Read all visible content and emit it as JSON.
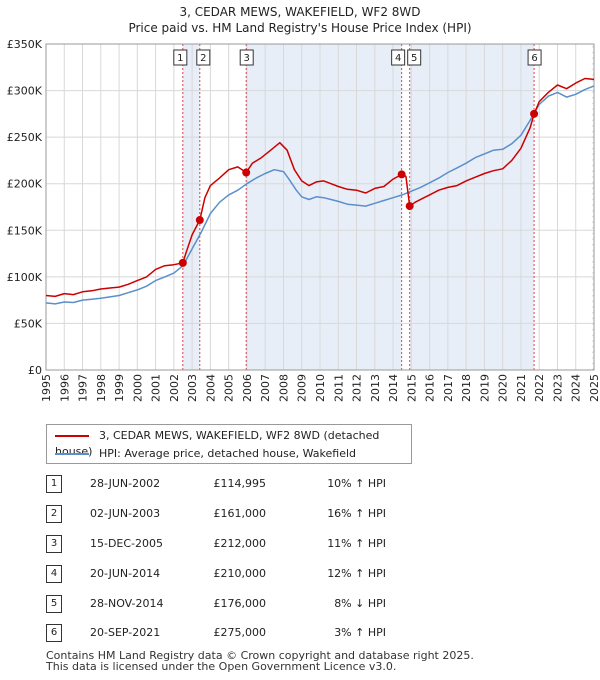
{
  "chart_data": {
    "type": "line",
    "title": "3, CEDAR MEWS, WAKEFIELD, WF2 8WD",
    "subtitle": "Price paid vs. HM Land Registry's House Price Index (HPI)",
    "x_ticks": [
      "1995",
      "1996",
      "1997",
      "1998",
      "1999",
      "2000",
      "2001",
      "2002",
      "2003",
      "2004",
      "2005",
      "2006",
      "2007",
      "2008",
      "2009",
      "2010",
      "2011",
      "2012",
      "2013",
      "2014",
      "2015",
      "2016",
      "2017",
      "2018",
      "2019",
      "2020",
      "2021",
      "2022",
      "2023",
      "2024",
      "2025"
    ],
    "y_ticks": [
      "£0",
      "£50K",
      "£100K",
      "£150K",
      "£200K",
      "£250K",
      "£300K",
      "£350K"
    ],
    "xlim": [
      1995,
      2025
    ],
    "ylim": [
      0,
      350000
    ],
    "colors": {
      "property": "#cc0000",
      "hpi": "#5b8fcc",
      "shade": "#e8eef8",
      "marker_line": "#dd4444"
    },
    "series": [
      {
        "name": "3, CEDAR MEWS, WAKEFIELD, WF2 8WD (detached house)",
        "x": [
          1995,
          1995.5,
          1996,
          1996.5,
          1997,
          1997.5,
          1998,
          1998.5,
          1999,
          1999.5,
          2000,
          2000.5,
          2001,
          2001.5,
          2002,
          2002.49,
          2002.7,
          2003,
          2003.42,
          2003.7,
          2004,
          2004.5,
          2005,
          2005.5,
          2005.96,
          2006.3,
          2006.8,
          2007.3,
          2007.8,
          2008.2,
          2008.6,
          2009,
          2009.4,
          2009.8,
          2010.2,
          2010.6,
          2011,
          2011.5,
          2012,
          2012.5,
          2013,
          2013.5,
          2014,
          2014.47,
          2014.7,
          2014.91,
          2015.2,
          2015.6,
          2016,
          2016.5,
          2017,
          2017.5,
          2018,
          2018.5,
          2019,
          2019.5,
          2020,
          2020.5,
          2021,
          2021.5,
          2021.72,
          2022,
          2022.5,
          2023,
          2023.5,
          2024,
          2024.5,
          2025
        ],
        "y": [
          80000,
          79000,
          82000,
          81000,
          84000,
          85000,
          87000,
          88000,
          89000,
          92000,
          96000,
          100000,
          108000,
          112000,
          113000,
          114995,
          128000,
          145000,
          161000,
          185000,
          198000,
          206000,
          215000,
          218000,
          212000,
          222000,
          228000,
          236000,
          244000,
          236000,
          215000,
          203000,
          198000,
          202000,
          203000,
          200000,
          197000,
          194000,
          193000,
          190000,
          195000,
          197000,
          205000,
          210000,
          208000,
          176000,
          180000,
          184000,
          188000,
          193000,
          196000,
          198000,
          203000,
          207000,
          211000,
          214000,
          216000,
          225000,
          238000,
          260000,
          275000,
          288000,
          298000,
          306000,
          302000,
          308000,
          313000,
          312000
        ]
      },
      {
        "name": "HPI: Average price, detached house, Wakefield",
        "x": [
          1995,
          1995.5,
          1996,
          1996.5,
          1997,
          1997.5,
          1998,
          1998.5,
          1999,
          1999.5,
          2000,
          2000.5,
          2001,
          2001.5,
          2002,
          2002.5,
          2003,
          2003.5,
          2004,
          2004.5,
          2005,
          2005.5,
          2006,
          2006.5,
          2007,
          2007.5,
          2008,
          2008.3,
          2008.7,
          2009,
          2009.4,
          2009.8,
          2010.2,
          2010.6,
          2011,
          2011.5,
          2012,
          2012.5,
          2013,
          2013.5,
          2014,
          2014.5,
          2015,
          2015.5,
          2016,
          2016.5,
          2017,
          2017.5,
          2018,
          2018.5,
          2019,
          2019.5,
          2020,
          2020.5,
          2021,
          2021.5,
          2022,
          2022.5,
          2023,
          2023.5,
          2024,
          2024.5,
          2025
        ],
        "y": [
          72000,
          71000,
          73000,
          72500,
          75000,
          76000,
          77000,
          78500,
          80000,
          83000,
          86000,
          90000,
          96000,
          100000,
          104000,
          112000,
          130000,
          148000,
          168000,
          180000,
          188000,
          193000,
          200000,
          206000,
          211000,
          215000,
          213000,
          205000,
          193000,
          186000,
          183000,
          186000,
          185000,
          183000,
          181000,
          178000,
          177000,
          176000,
          179000,
          182000,
          185000,
          188000,
          192000,
          196000,
          201000,
          206000,
          212000,
          217000,
          222000,
          228000,
          232000,
          236000,
          237000,
          243000,
          252000,
          268000,
          285000,
          294000,
          298000,
          293000,
          296000,
          301000,
          305000
        ]
      }
    ],
    "sales": [
      {
        "label": "1",
        "x": 2002.49,
        "y": 114995
      },
      {
        "label": "2",
        "x": 2003.42,
        "y": 161000
      },
      {
        "label": "3",
        "x": 2005.96,
        "y": 212000
      },
      {
        "label": "4",
        "x": 2014.47,
        "y": 210000
      },
      {
        "label": "5",
        "x": 2014.91,
        "y": 176000
      },
      {
        "label": "6",
        "x": 2021.72,
        "y": 275000
      }
    ],
    "shaded_spans": [
      [
        2002.49,
        2003.42
      ],
      [
        2005.96,
        2014.47
      ],
      [
        2014.91,
        2021.72
      ]
    ]
  },
  "legend": {
    "property_label": "3, CEDAR MEWS, WAKEFIELD, WF2 8WD (detached house)",
    "hpi_label": "HPI: Average price, detached house, Wakefield"
  },
  "transactions": [
    {
      "num": "1",
      "date": "28-JUN-2002",
      "price": "£114,995",
      "pct": "10% ↑ HPI"
    },
    {
      "num": "2",
      "date": "02-JUN-2003",
      "price": "£161,000",
      "pct": "16% ↑ HPI"
    },
    {
      "num": "3",
      "date": "15-DEC-2005",
      "price": "£212,000",
      "pct": "11% ↑ HPI"
    },
    {
      "num": "4",
      "date": "20-JUN-2014",
      "price": "£210,000",
      "pct": "12% ↑ HPI"
    },
    {
      "num": "5",
      "date": "28-NOV-2014",
      "price": "£176,000",
      "pct": "8% ↓ HPI"
    },
    {
      "num": "6",
      "date": "20-SEP-2021",
      "price": "£275,000",
      "pct": "3% ↑ HPI"
    }
  ],
  "footer": {
    "line1": "Contains HM Land Registry data © Crown copyright and database right 2025.",
    "line2": "This data is licensed under the Open Government Licence v3.0."
  }
}
